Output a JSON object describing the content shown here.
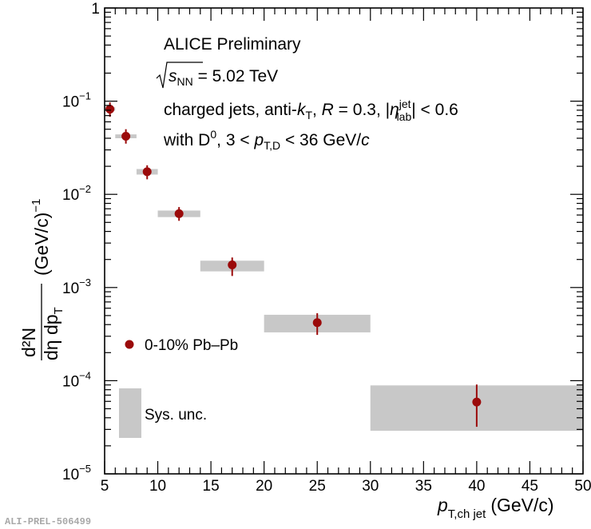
{
  "chart_data": {
    "type": "scatter",
    "yscale": "log",
    "xlim": [
      5,
      50
    ],
    "ylim": [
      1e-05,
      1
    ],
    "x_ticks": [
      "5",
      "10",
      "15",
      "20",
      "25",
      "30",
      "35",
      "40",
      "45",
      "50"
    ],
    "y_ticks": [
      {
        "base": "1",
        "exp": ""
      },
      {
        "base": "10",
        "exp": "−1"
      },
      {
        "base": "10",
        "exp": "−2"
      },
      {
        "base": "10",
        "exp": "−3"
      },
      {
        "base": "10",
        "exp": "−4"
      },
      {
        "base": "10",
        "exp": "−5"
      }
    ],
    "xlabel": {
      "main": "p",
      "sub": "T,ch jet",
      "unit": "(GeV/c)"
    },
    "ylabel": {
      "num": "d²N",
      "den": "dη dp",
      "den_sub": "T",
      "unit": "(GeV/c)",
      "unit_exp": "−1"
    },
    "series": [
      {
        "name": "0-10% Pb–Pb",
        "color": "#9b0a0a",
        "points": [
          {
            "x": 5.5,
            "y": 0.082,
            "ylo": 0.068,
            "yhi": 0.097,
            "xlo": 5,
            "xhi": 6,
            "sys_lo": 0.079,
            "sys_hi": 0.086
          },
          {
            "x": 7,
            "y": 0.042,
            "ylo": 0.035,
            "yhi": 0.05,
            "xlo": 6,
            "xhi": 8,
            "sys_lo": 0.04,
            "sys_hi": 0.044
          },
          {
            "x": 9,
            "y": 0.0175,
            "ylo": 0.0145,
            "yhi": 0.0205,
            "xlo": 8,
            "xhi": 10,
            "sys_lo": 0.0163,
            "sys_hi": 0.0187
          },
          {
            "x": 12,
            "y": 0.0062,
            "ylo": 0.0052,
            "yhi": 0.0073,
            "xlo": 10,
            "xhi": 14,
            "sys_lo": 0.0057,
            "sys_hi": 0.0067
          },
          {
            "x": 17,
            "y": 0.00175,
            "ylo": 0.00133,
            "yhi": 0.0021,
            "xlo": 14,
            "xhi": 20,
            "sys_lo": 0.00149,
            "sys_hi": 0.00194
          },
          {
            "x": 25,
            "y": 0.00042,
            "ylo": 0.00031,
            "yhi": 0.00053,
            "xlo": 20,
            "xhi": 30,
            "sys_lo": 0.00033,
            "sys_hi": 0.00051
          },
          {
            "x": 40,
            "y": 5.9e-05,
            "ylo": 3.2e-05,
            "yhi": 9.1e-05,
            "xlo": 30,
            "xhi": 50,
            "sys_lo": 2.9e-05,
            "sys_hi": 8.9e-05
          }
        ]
      }
    ],
    "sys_color": "#c8c8c8",
    "grid": false,
    "legend": {
      "position": "left",
      "point_label": "0-10% Pb–Pb",
      "sys_label": "Sys. unc."
    },
    "annotations": {
      "line1": "ALICE Preliminary",
      "line2": {
        "pre": "s",
        "pre_sub": "NN",
        "post": " = 5.02 TeV"
      },
      "line3": {
        "a": "charged jets, anti-",
        "k": "k",
        "k_sub": "T",
        "b": ", ",
        "R": "R",
        "c": " = 0.3, |",
        "eta": "η",
        "eta_sup": "jet",
        "eta_sub": "lab",
        "d": "| < 0.6"
      },
      "line4": {
        "a": "with D",
        "a_sup": "0",
        "b": ", 3 < ",
        "p": "p",
        "p_sub": "T,D",
        "c": " < 36 GeV/",
        "c_it": "c"
      }
    }
  },
  "footer": "ALI-PREL-506499"
}
